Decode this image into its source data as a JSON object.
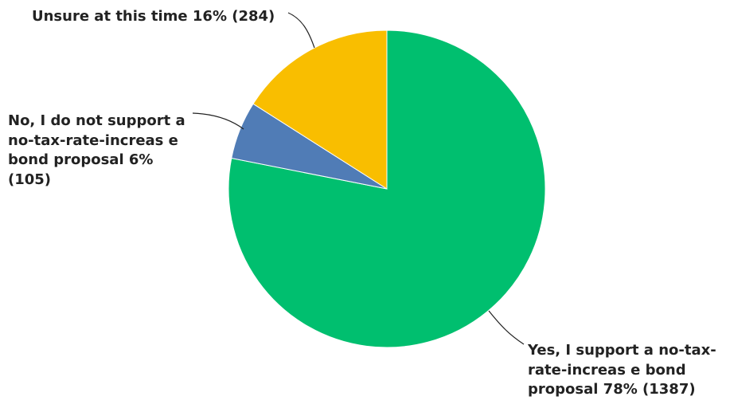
{
  "chart_data": {
    "type": "pie",
    "title": "",
    "slices": [
      {
        "label_lines": [
          "Yes, I support a no-tax-",
          "rate-increas e bond",
          "proposal 78% (1387)"
        ],
        "name": "Yes, I support a no-tax-rate-increas e bond proposal",
        "percent": 78,
        "count": 1387,
        "color": "#00bf6f"
      },
      {
        "label_lines": [
          "No, I do not support a",
          "no-tax-rate-increas e",
          "bond proposal 6%",
          "(105)"
        ],
        "name": "No, I do not support a no-tax-rate-increas e bond proposal",
        "percent": 6,
        "count": 105,
        "color": "#507cb6"
      },
      {
        "label_lines": [
          "Unsure at this time 16% (284)"
        ],
        "name": "Unsure at this time",
        "percent": 16,
        "count": 284,
        "color": "#f9be00"
      }
    ],
    "start_angle": "12 o'clock",
    "direction": "clockwise"
  }
}
